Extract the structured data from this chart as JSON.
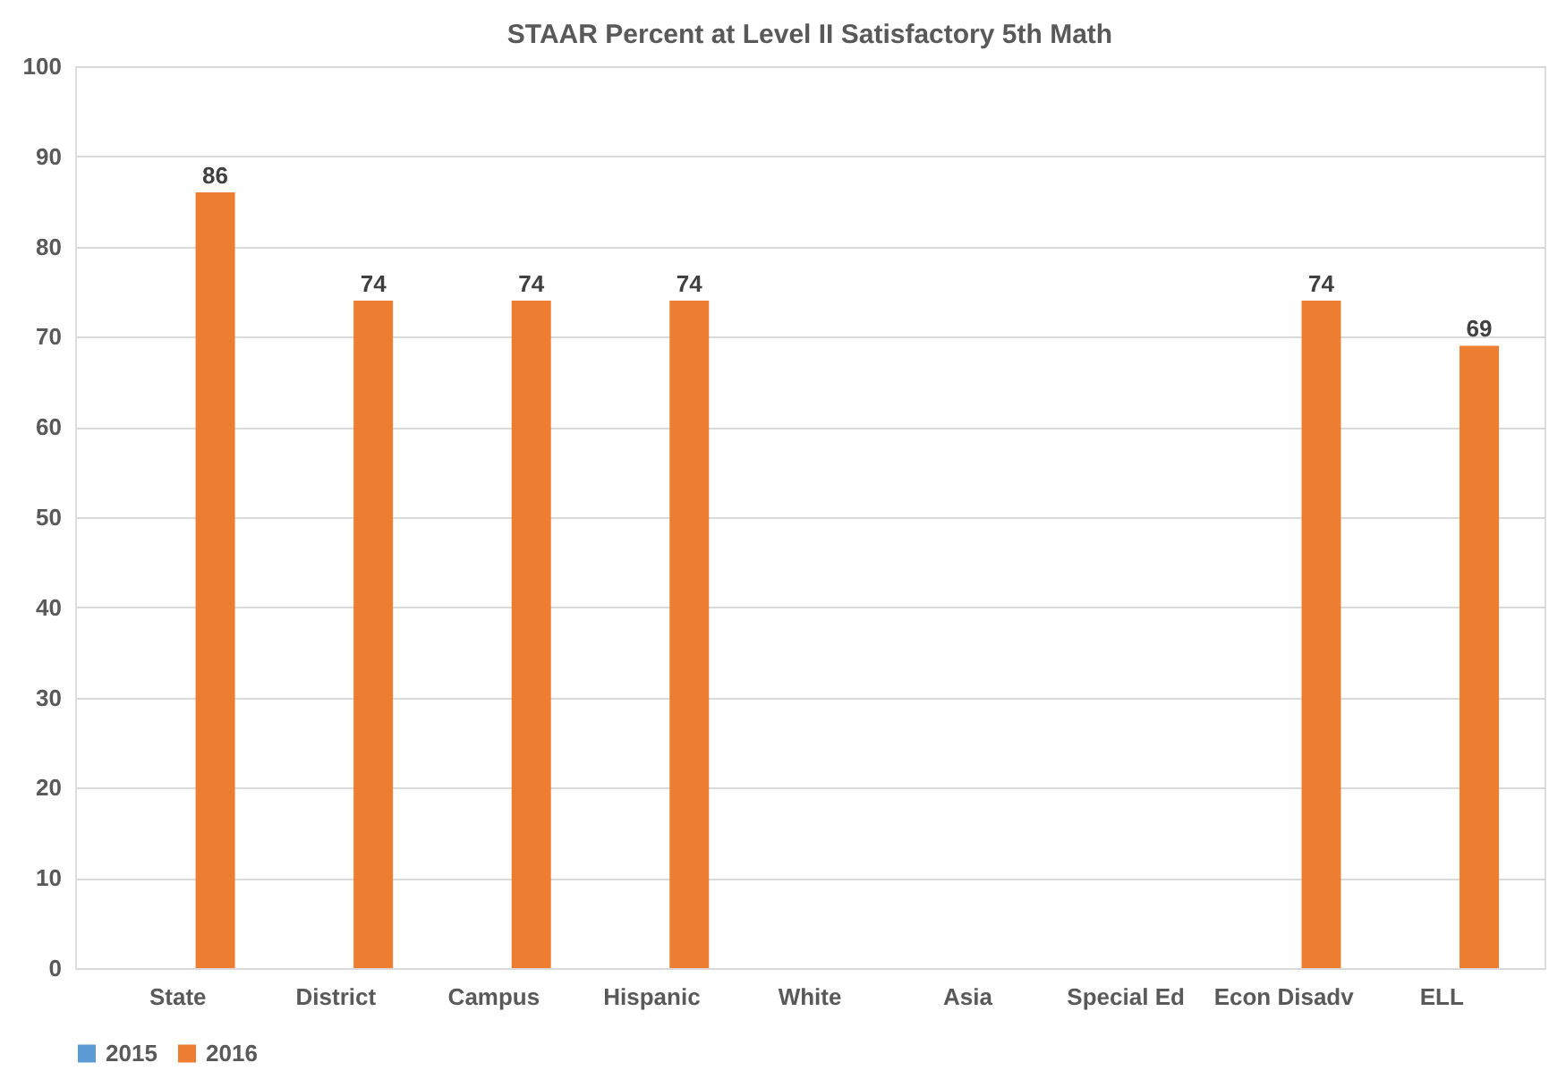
{
  "chart_data": {
    "type": "bar",
    "title": "STAAR Percent at Level II Satisfactory 5th Math",
    "categories": [
      "State",
      "District",
      "Campus",
      "Hispanic",
      "White",
      "Asia",
      "Special Ed",
      "Econ Disadv",
      "ELL"
    ],
    "series": [
      {
        "name": "2015",
        "color": "#5b9bd5",
        "values": [
          null,
          null,
          null,
          null,
          null,
          null,
          null,
          null,
          null
        ]
      },
      {
        "name": "2016",
        "color": "#ed7d31",
        "values": [
          86,
          74,
          74,
          74,
          null,
          null,
          null,
          74,
          69
        ]
      }
    ],
    "ylim": [
      0,
      100
    ],
    "yticks": [
      0,
      10,
      20,
      30,
      40,
      50,
      60,
      70,
      80,
      90,
      100
    ],
    "grid": "y",
    "legend": "bottom",
    "data_labels": true
  }
}
